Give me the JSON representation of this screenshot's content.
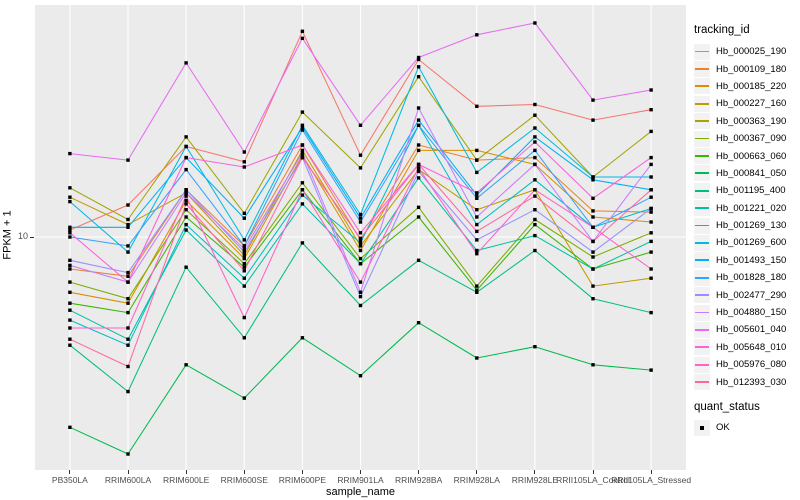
{
  "figure": {
    "background": "#FFFFFF",
    "panel_background": "#EBEBEB",
    "grid_color": "#FFFFFF",
    "axis_text_color": "#4D4D4D",
    "point_color": "#000000"
  },
  "chart_data": {
    "type": "line",
    "title": "",
    "xlabel": "sample_name",
    "ylabel": "FPKM + 1",
    "y_scale": "log10",
    "y_tick_label": "10",
    "y_ticks": [
      10
    ],
    "ylim": [
      2,
      50
    ],
    "grid": "major white gridlines on grey panel",
    "legend_position": "right",
    "x_categories": [
      "PB350LA",
      "RRIM600LA",
      "RRIM600LE",
      "RRIM600SE",
      "RRIM600PE",
      "RRIM901LA",
      "RRIM928BA",
      "RRIM928LA",
      "RRIM928LE",
      "RRII105LA_Control",
      "RRII105LA_Stressed"
    ],
    "series": [
      {
        "name": "Hb_000025_190",
        "color": "#F8766D",
        "values": [
          10.5,
          12.5,
          18.8,
          16.9,
          42,
          17.7,
          34.5,
          24.9,
          25.2,
          22.6,
          24.3
        ]
      },
      {
        "name": "Hb_000109_180",
        "color": "#EA8331",
        "values": [
          8.0,
          7.6,
          13.9,
          9.4,
          19.0,
          9.8,
          19.0,
          17.1,
          17.4,
          12.0,
          11.9
        ]
      },
      {
        "name": "Hb_000185_220",
        "color": "#D89000",
        "values": [
          6.8,
          6.3,
          12.9,
          8.6,
          17.7,
          9.1,
          18.3,
          18.3,
          16.6,
          11.5,
          11.1
        ]
      },
      {
        "name": "Hb_000227_160",
        "color": "#C09B00",
        "values": [
          13.2,
          10.9,
          13.6,
          8.8,
          18.3,
          9.4,
          16.0,
          12.1,
          13.9,
          7.1,
          7.5
        ]
      },
      {
        "name": "Hb_000363_190",
        "color": "#A3A500",
        "values": [
          14.1,
          11.3,
          20.1,
          11.8,
          23.9,
          16.2,
          30.6,
          17.1,
          23.4,
          15.2,
          20.9
        ]
      },
      {
        "name": "Hb_000367_090",
        "color": "#7CAE00",
        "values": [
          7.3,
          6.5,
          12.1,
          8.3,
          14.6,
          8.6,
          12.3,
          7.1,
          11.3,
          8.7,
          10.3
        ]
      },
      {
        "name": "Hb_000663_060",
        "color": "#39B600",
        "values": [
          6.3,
          5.9,
          11.5,
          8.1,
          13.9,
          8.3,
          11.5,
          6.9,
          10.9,
          8.0,
          9.0
        ]
      },
      {
        "name": "Hb_000841_050",
        "color": "#00BB4E",
        "values": [
          2.65,
          2.2,
          4.1,
          3.25,
          4.95,
          3.8,
          5.5,
          4.3,
          4.65,
          4.1,
          3.95
        ]
      },
      {
        "name": "Hb_001195_400",
        "color": "#00BF7D",
        "values": [
          4.7,
          3.4,
          8.1,
          4.95,
          9.6,
          6.2,
          8.5,
          6.8,
          9.1,
          6.5,
          5.9
        ]
      },
      {
        "name": "Hb_001221_020",
        "color": "#00C1A3",
        "values": [
          6.0,
          4.9,
          10.5,
          7.1,
          12.6,
          8.3,
          15.1,
          9.1,
          10.1,
          8.0,
          9.7
        ]
      },
      {
        "name": "Hb_001269_130",
        "color": "#00BFC4",
        "values": [
          5.6,
          4.7,
          10.9,
          7.5,
          13.4,
          9.6,
          21.8,
          10.9,
          14.9,
          10.7,
          12.2
        ]
      },
      {
        "name": "Hb_001269_600",
        "color": "#00BAE0",
        "values": [
          12.8,
          9.0,
          18.8,
          9.8,
          21.8,
          11.7,
          32.8,
          15.7,
          21.4,
          15.2,
          15.2
        ]
      },
      {
        "name": "Hb_001493_150",
        "color": "#00B0F6",
        "values": [
          10.7,
          10.7,
          17.4,
          11.4,
          21.5,
          11.4,
          22.6,
          13.4,
          20.1,
          14.9,
          13.9
        ]
      },
      {
        "name": "Hb_001828_180",
        "color": "#35A2FF",
        "values": [
          10.0,
          9.4,
          16.0,
          9.4,
          21.1,
          11.1,
          21.8,
          13.1,
          18.3,
          10.7,
          13.2
        ]
      },
      {
        "name": "Hb_002477_290",
        "color": "#9590FF",
        "values": [
          8.5,
          7.8,
          13.9,
          9.0,
          17.4,
          6.6,
          15.8,
          9.8,
          12.1,
          9.0,
          12.2
        ]
      },
      {
        "name": "Hb_004880_150",
        "color": "#C77CFF",
        "values": [
          8.2,
          7.3,
          13.6,
          9.2,
          18.0,
          6.8,
          24.6,
          11.5,
          16.6,
          9.7,
          16.6
        ]
      },
      {
        "name": "Hb_005601_040",
        "color": "#E76BF3",
        "values": [
          17.9,
          17.1,
          33.7,
          18.1,
          40,
          21.8,
          35.0,
          41,
          44.5,
          26,
          27.9
        ]
      },
      {
        "name": "Hb_005648_010",
        "color": "#FA62DB",
        "values": [
          10.3,
          7.3,
          17.4,
          16.3,
          19.0,
          10.3,
          16.6,
          13.6,
          19.4,
          13.1,
          17.4
        ]
      },
      {
        "name": "Hb_005976_080",
        "color": "#FF61CC",
        "values": [
          5.3,
          5.3,
          13.3,
          5.7,
          13.9,
          7.3,
          16.2,
          8.9,
          13.9,
          10.7,
          8.0
        ]
      },
      {
        "name": "Hb_012393_030",
        "color": "#FF67A4",
        "values": [
          4.9,
          4.05,
          12.6,
          7.9,
          17.4,
          9.9,
          16.6,
          10.4,
          13.3,
          9.7,
          13.9
        ]
      }
    ],
    "legend": {
      "tracking_title": "tracking_id",
      "quant_title": "quant_status",
      "quant_items": [
        {
          "label": "OK"
        }
      ]
    }
  }
}
